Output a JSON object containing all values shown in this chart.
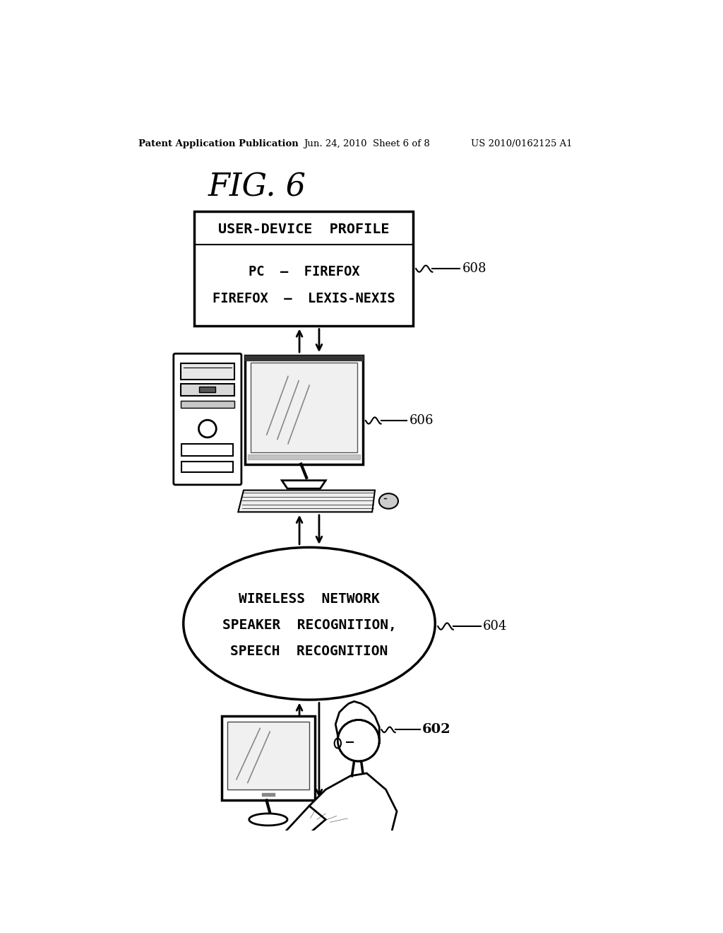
{
  "title": "FIG. 6",
  "header_left": "Patent Application Publication",
  "header_center": "Jun. 24, 2010  Sheet 6 of 8",
  "header_right": "US 2010/0162125 A1",
  "bg_color": "#ffffff",
  "box608_line1": "USER-DEVICE  PROFILE",
  "box608_line2": "PC – FIREFOX",
  "box608_line3": "FIREFOX – LEXIS-NEXIS",
  "box608_label": "608",
  "box606_label": "606",
  "ellipse604_line1": "WIRELESS  NETWORK",
  "ellipse604_line2": "SPEAKER  RECOGNITION,",
  "ellipse604_line3": "SPEECH  RECOGNITION",
  "ellipse604_label": "604",
  "person602_label": "602"
}
